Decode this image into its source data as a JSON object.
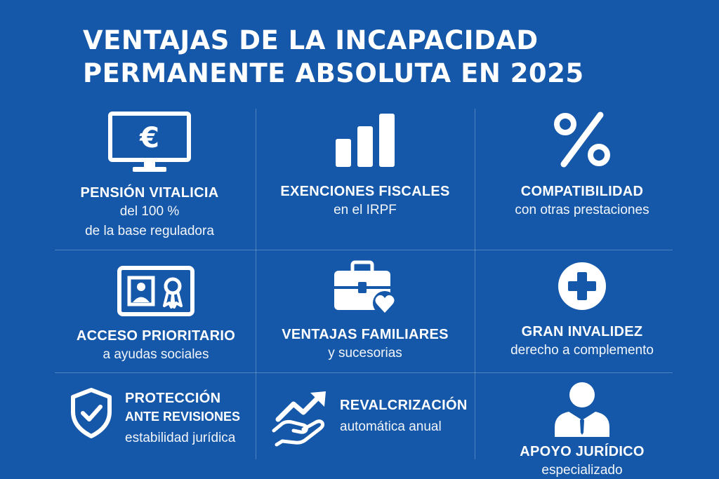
{
  "title": {
    "line1": "VENTAJAS DE LA INCAPACIDAD",
    "line2": "PERMANENTE ABSOLUTA EN 2025"
  },
  "cells": {
    "pension": {
      "icon": "monitor-euro-icon",
      "heading": "PENSIÓN VITALICIA",
      "line1": "del 100 %",
      "line2": "de la base reguladora"
    },
    "exenciones": {
      "icon": "bar-chart-icon",
      "heading": "EXENCIONES FISCALES",
      "line1": "en el IRPF"
    },
    "compatibilidad": {
      "icon": "percent-icon",
      "heading": "COMPATIBILIDAD",
      "line1": "con otras prestaciones"
    },
    "acceso": {
      "icon": "id-card-badge-icon",
      "heading": "ACCESO PRIORITARIO",
      "line1": "a ayudas sociales"
    },
    "familiares": {
      "icon": "briefcase-heart-icon",
      "heading": "VENTAJAS FAMILIARES",
      "line1": "y sucesorias"
    },
    "invalidez": {
      "icon": "plus-circle-icon",
      "heading": "GRAN INVALIDEZ",
      "line1": "derecho a complemento"
    },
    "proteccion": {
      "icon": "shield-check-icon",
      "heading1": "PROTECCIÓN",
      "heading2": "ANTE REVISIONES",
      "line1": "estabilidad jurídica"
    },
    "revalorizacion": {
      "icon": "hand-growth-icon",
      "heading": "REVALCRIZACIÓN",
      "line1": "automática anual"
    },
    "apoyo": {
      "icon": "businessman-icon",
      "heading": "APOYO JURÍDICO",
      "line1": "especializado"
    }
  },
  "colors": {
    "background": "#1557a8",
    "foreground": "#ffffff"
  }
}
